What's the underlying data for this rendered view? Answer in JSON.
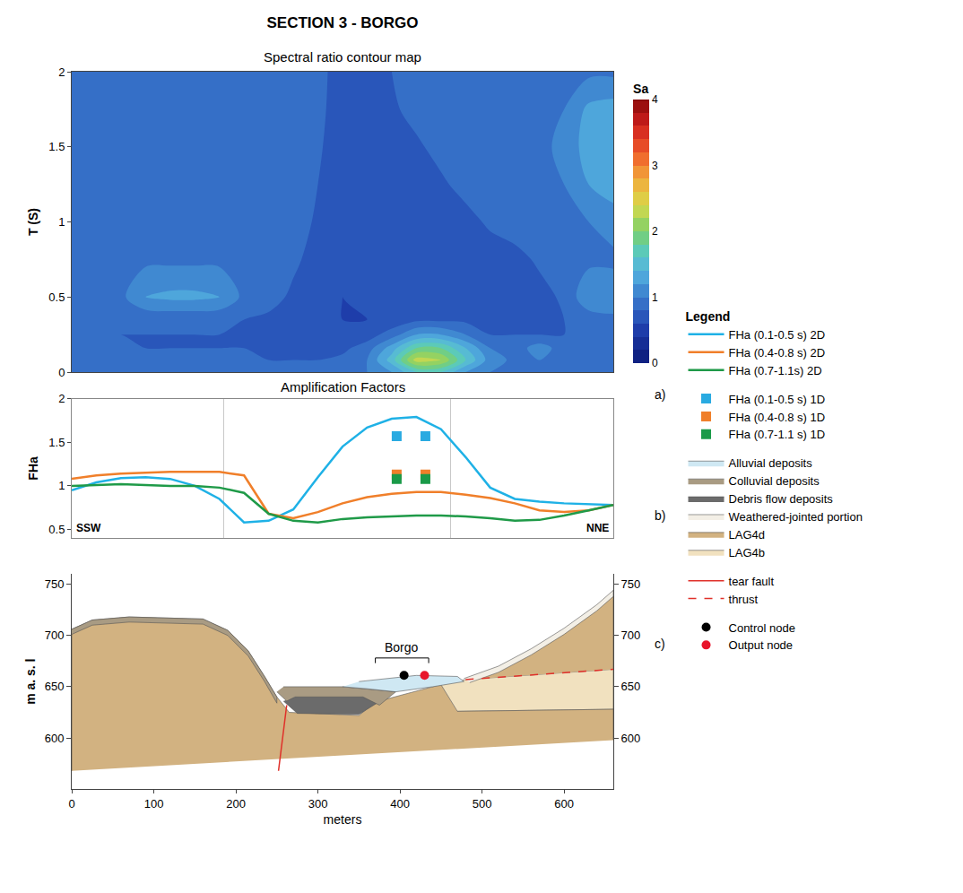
{
  "chart_data": [
    {
      "type": "contour",
      "title": "SECTION 3 - BORGO",
      "subtitle": "Spectral ratio contour map",
      "y_label": "T (S)",
      "annotations": [
        {
          "text": "a)"
        }
      ],
      "x": [
        0,
        30,
        60,
        90,
        120,
        150,
        180,
        210,
        240,
        270,
        300,
        330,
        360,
        390,
        420,
        450,
        480,
        510,
        540,
        570,
        600,
        630,
        660
      ],
      "y": [
        0,
        0.08,
        0.16,
        0.25,
        0.35,
        0.5,
        0.75,
        1,
        1.25,
        1.5,
        1.75,
        2
      ],
      "z": [
        [
          0.9,
          0.9,
          0.9,
          0.9,
          0.9,
          0.9,
          0.9,
          0.9,
          0.85,
          0.85,
          0.85,
          0.9,
          1.0,
          1.2,
          1.6,
          1.6,
          1.2,
          1.0,
          0.9,
          0.9,
          0.9,
          0.9,
          0.9
        ],
        [
          0.9,
          0.9,
          0.9,
          0.9,
          0.9,
          0.9,
          0.9,
          0.85,
          0.8,
          0.8,
          0.8,
          0.85,
          1.0,
          1.5,
          2.3,
          2.2,
          1.6,
          1.1,
          0.95,
          1.0,
          0.9,
          0.9,
          0.9
        ],
        [
          0.85,
          0.85,
          0.85,
          0.8,
          0.8,
          0.8,
          0.8,
          0.8,
          0.75,
          0.75,
          0.75,
          0.75,
          0.9,
          1.3,
          1.8,
          1.8,
          1.4,
          1.0,
          0.9,
          1.1,
          0.9,
          0.9,
          0.9
        ],
        [
          0.85,
          0.8,
          0.8,
          0.8,
          0.8,
          0.8,
          0.8,
          0.8,
          0.75,
          0.7,
          0.65,
          0.65,
          0.7,
          0.9,
          1.2,
          1.2,
          1.0,
          0.8,
          0.8,
          0.8,
          0.8,
          0.9,
          0.95
        ],
        [
          0.9,
          0.85,
          0.85,
          0.85,
          0.85,
          0.85,
          0.85,
          0.8,
          0.75,
          0.7,
          0.65,
          0.6,
          0.6,
          0.65,
          0.75,
          0.75,
          0.75,
          0.75,
          0.75,
          0.75,
          0.8,
          0.9,
          0.95
        ],
        [
          0.95,
          0.95,
          0.95,
          1.2,
          1.25,
          1.25,
          1.2,
          0.95,
          0.9,
          0.75,
          0.65,
          0.6,
          0.65,
          0.65,
          0.65,
          0.65,
          0.65,
          0.65,
          0.65,
          0.7,
          0.85,
          1.15,
          1.15
        ],
        [
          0.95,
          0.95,
          0.95,
          0.95,
          0.95,
          0.95,
          0.95,
          0.95,
          0.95,
          0.85,
          0.7,
          0.6,
          0.65,
          0.65,
          0.65,
          0.65,
          0.65,
          0.65,
          0.7,
          0.85,
          0.95,
          0.95,
          0.95
        ],
        [
          0.95,
          0.95,
          0.95,
          0.95,
          0.95,
          0.95,
          0.95,
          0.95,
          0.95,
          0.95,
          0.75,
          0.6,
          0.65,
          0.65,
          0.65,
          0.65,
          0.7,
          0.85,
          0.95,
          0.95,
          0.95,
          1.0,
          1.1
        ],
        [
          0.95,
          0.95,
          0.95,
          0.95,
          0.95,
          0.95,
          0.95,
          0.95,
          0.95,
          0.95,
          0.8,
          0.6,
          0.65,
          0.65,
          0.65,
          0.75,
          0.9,
          0.95,
          0.95,
          0.95,
          1.0,
          1.2,
          1.3
        ],
        [
          0.95,
          0.95,
          0.95,
          0.95,
          0.95,
          0.95,
          0.95,
          0.95,
          0.95,
          0.95,
          0.85,
          0.6,
          0.65,
          0.65,
          0.75,
          0.9,
          0.95,
          0.95,
          0.95,
          0.95,
          1.05,
          1.3,
          1.35
        ],
        [
          0.95,
          0.95,
          0.95,
          0.95,
          0.95,
          0.95,
          0.95,
          0.95,
          0.95,
          0.95,
          0.9,
          0.6,
          0.7,
          0.75,
          0.9,
          0.95,
          0.95,
          0.95,
          0.95,
          0.95,
          1.0,
          1.25,
          1.3
        ],
        [
          0.95,
          0.95,
          0.95,
          0.95,
          0.95,
          0.95,
          0.95,
          0.95,
          0.95,
          0.95,
          0.9,
          0.65,
          0.7,
          0.8,
          0.95,
          0.95,
          0.95,
          0.95,
          0.95,
          0.95,
          0.95,
          0.95,
          0.95
        ]
      ],
      "xlim": [
        0,
        660
      ],
      "ylim": [
        0,
        2
      ],
      "yticks": [
        0,
        0.5,
        1,
        1.5,
        2
      ],
      "tick_labels": "y",
      "colorbar": {
        "title": "Sa",
        "range": [
          0,
          4
        ],
        "ticks": [
          0,
          1,
          2,
          3,
          4
        ]
      }
    },
    {
      "type": "line",
      "title": "Amplification Factors",
      "y_label": "FHa",
      "x": [
        0,
        30,
        60,
        90,
        120,
        150,
        180,
        210,
        240,
        270,
        300,
        330,
        360,
        390,
        420,
        450,
        480,
        510,
        540,
        570,
        600,
        630,
        660
      ],
      "series": [
        {
          "name": "FHa (0.1-0.5 s) 2D",
          "color": "#1fb1e6",
          "type": "line",
          "line_style": "solid",
          "values": [
            0.95,
            1.04,
            1.09,
            1.1,
            1.08,
            1.0,
            0.85,
            0.58,
            0.6,
            0.73,
            1.1,
            1.45,
            1.67,
            1.77,
            1.79,
            1.65,
            1.33,
            0.98,
            0.85,
            0.82,
            0.8,
            0.79,
            0.78
          ]
        },
        {
          "name": "FHa (0.4-0.8 s) 2D",
          "color": "#f07f2a",
          "type": "line",
          "line_style": "solid",
          "values": [
            1.08,
            1.12,
            1.14,
            1.15,
            1.16,
            1.16,
            1.16,
            1.12,
            0.68,
            0.63,
            0.7,
            0.8,
            0.87,
            0.91,
            0.93,
            0.93,
            0.9,
            0.86,
            0.8,
            0.72,
            0.7,
            0.72,
            0.78
          ]
        },
        {
          "name": "FHa (0.7-1.1s) 2D",
          "color": "#1f9a48",
          "type": "line",
          "line_style": "solid",
          "values": [
            1.0,
            1.01,
            1.02,
            1.01,
            1.0,
            1.0,
            0.98,
            0.92,
            0.68,
            0.6,
            0.58,
            0.62,
            0.64,
            0.65,
            0.66,
            0.66,
            0.65,
            0.63,
            0.6,
            0.61,
            0.66,
            0.72,
            0.78
          ]
        },
        {
          "name": "FHa (0.1-0.5 s) 1D",
          "color": "#29aae1",
          "type": "scatter",
          "marker": "square",
          "x": [
            396,
            431
          ],
          "values": [
            1.57,
            1.57
          ]
        },
        {
          "name": "FHa (0.4-0.8 s) 1D",
          "color": "#f07f2a",
          "type": "scatter",
          "marker": "square",
          "x": [
            396,
            431
          ],
          "values": [
            1.13,
            1.13
          ]
        },
        {
          "name": "FHa (0.7-1.1 s) 1D",
          "color": "#1a9a48",
          "type": "scatter",
          "marker": "square",
          "x": [
            396,
            431
          ],
          "values": [
            1.08,
            1.08
          ]
        }
      ],
      "xlim": [
        0,
        660
      ],
      "ylim": [
        0.4,
        2
      ],
      "xticks": [
        185,
        462
      ],
      "yticks": [
        0.5,
        1,
        1.5,
        2
      ],
      "grid": "x",
      "tick_labels": "y",
      "legend": "right",
      "legend_title": "Legend",
      "annotations": [
        {
          "text": "SSW",
          "x": 0,
          "y": 0.42
        },
        {
          "text": "NNE",
          "x": 660,
          "y": 0.42
        },
        {
          "text": "b)"
        }
      ]
    },
    {
      "type": "cross_section",
      "x_label": "meters",
      "y_label": "m a. s. l",
      "xlim": [
        0,
        660
      ],
      "ylim": [
        550,
        760
      ],
      "xticks": [
        0,
        100,
        200,
        300,
        400,
        500,
        600
      ],
      "yticks": [
        600,
        650,
        700,
        750
      ],
      "layers": [
        {
          "name": "Alluvial deposits",
          "color": "#cfe8f3",
          "polygons": [
            {
              "x": [
                330,
                360,
                395,
                440,
                478,
                470,
                420,
                350
              ],
              "y": [
                650,
                648,
                645,
                650,
                655,
                660,
                661,
                655
              ]
            }
          ]
        },
        {
          "name": "Colluvial deposits",
          "color": "#a99b83",
          "polygons": [
            {
              "x": [
                0,
                25,
                70,
                160,
                190,
                215,
                235,
                250,
                250,
                235,
                215,
                190,
                160,
                70,
                25,
                0
              ],
              "y": [
                706,
                715,
                718,
                716,
                705,
                685,
                660,
                640,
                634,
                655,
                680,
                700,
                711,
                713,
                710,
                701
              ]
            },
            {
              "x": [
                250,
                262,
                272,
                355,
                375,
                395,
                330,
                258
              ],
              "y": [
                645,
                636,
                640,
                640,
                632,
                645,
                650,
                650
              ]
            }
          ]
        },
        {
          "name": "Debris flow deposits",
          "color": "#6b6b6b",
          "polygons": [
            {
              "x": [
                258,
                275,
                350,
                372,
                355,
                272
              ],
              "y": [
                636,
                624,
                623,
                634,
                640,
                640
              ]
            }
          ]
        },
        {
          "name": "Weathered-jointed portion",
          "color": "#f3efe6",
          "polygons": [
            {
              "x": [
                478,
                520,
                560,
                600,
                640,
                660,
                660,
                640,
                600,
                560,
                520,
                485
              ],
              "y": [
                658,
                670,
                687,
                707,
                730,
                744,
                738,
                724,
                701,
                681,
                664,
                654
              ]
            }
          ]
        },
        {
          "name": "LAG4d",
          "color": "#d2b281",
          "polygons": [
            {
              "x": [
                0,
                0,
                25,
                70,
                160,
                190,
                215,
                235,
                250,
                265,
                350,
                370,
                440,
                450,
                470,
                660,
                660
              ],
              "y": [
                568,
                706,
                715,
                718,
                716,
                705,
                685,
                660,
                640,
                625,
                622,
                635,
                650,
                652,
                626,
                628,
                598
              ]
            },
            {
              "x": [
                480,
                520,
                560,
                600,
                640,
                660,
                660
              ],
              "y": [
                657,
                668,
                685,
                705,
                728,
                742,
                667
              ]
            }
          ]
        },
        {
          "name": "LAG4b",
          "color": "#f1e1bf",
          "polygons": [
            {
              "x": [
                450,
                480,
                660,
                660,
                470
              ],
              "y": [
                652,
                657,
                667,
                628,
                626
              ]
            }
          ]
        }
      ],
      "lines": [
        {
          "name": "tear fault",
          "color": "#e0302a",
          "line_style": "solid",
          "x": [
            262,
            252
          ],
          "y": [
            632,
            568
          ]
        },
        {
          "name": "thrust",
          "color": "#e0302a",
          "line_style": "dashed",
          "x": [
            480,
            660
          ],
          "y": [
            657,
            667
          ]
        }
      ],
      "points": [
        {
          "name": "Control node",
          "color": "#000000",
          "marker": "circle",
          "x": [
            405
          ],
          "y": [
            661
          ]
        },
        {
          "name": "Output node",
          "color": "#e8152b",
          "marker": "circle",
          "x": [
            430
          ],
          "y": [
            661
          ]
        }
      ],
      "annotations": [
        {
          "text": "Borgo",
          "x": [
            370,
            435
          ],
          "y": 678
        },
        {
          "text": "c)"
        }
      ]
    }
  ]
}
